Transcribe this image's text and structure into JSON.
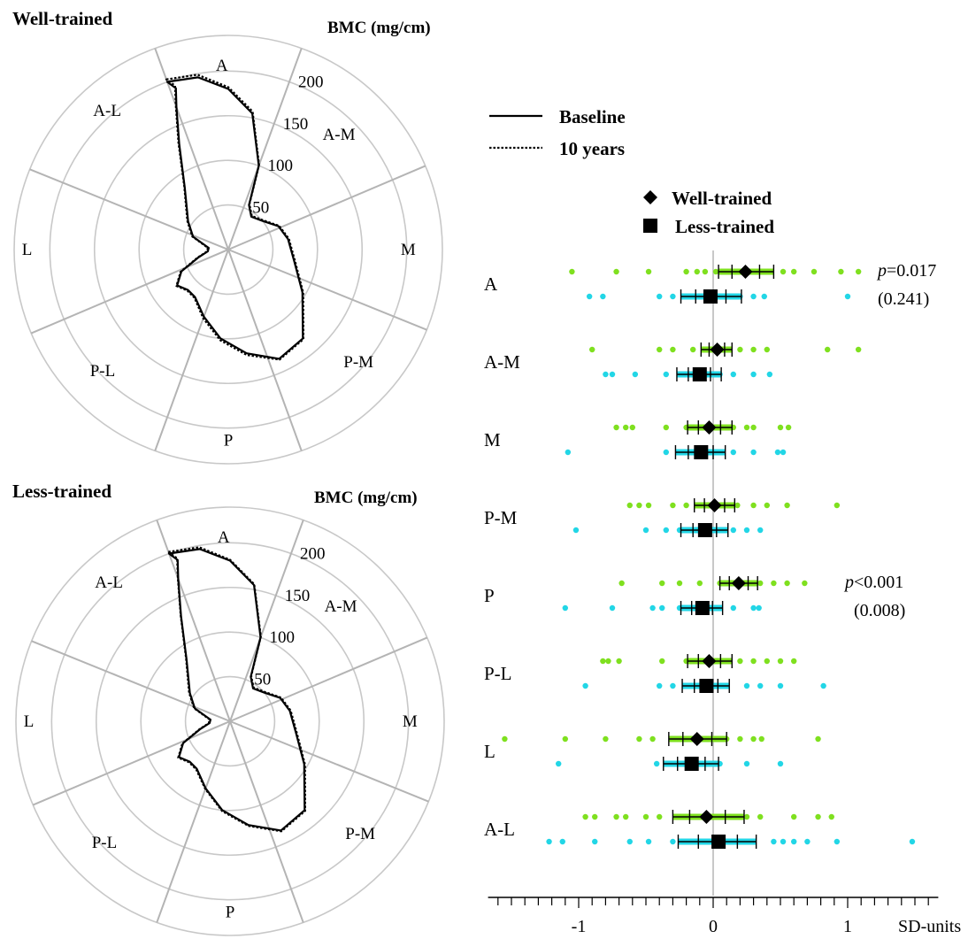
{
  "legend_lines": {
    "baseline": "Baseline",
    "ten_years": "10 years"
  },
  "legend_markers": {
    "well_trained": "Well-trained",
    "less_trained": "Less-trained"
  },
  "colors": {
    "well_trained_dots": "#7fe01f",
    "less_trained_dots": "#22d6e6",
    "grid": "#c8c8c8",
    "spokes": "#b4b4b4",
    "ink": "#000000"
  },
  "chart_data": [
    {
      "type": "polar-line",
      "title": "Well-trained",
      "axis_label": "BMC (mg/cm)",
      "radial_ticks": [
        "50",
        "100",
        "150",
        "200"
      ],
      "rmax": 200,
      "sectors": [
        "A",
        "A-M",
        "M",
        "P-M",
        "P",
        "P-L",
        "L",
        "A-L"
      ],
      "series": [
        {
          "name": "Baseline",
          "points": [
            [
              -20,
              200
            ],
            [
              -10,
              196
            ],
            [
              0,
              180
            ],
            [
              10,
              155
            ],
            [
              20,
              100
            ],
            [
              25,
              55
            ],
            [
              35,
              45
            ],
            [
              50,
              50
            ],
            [
              65,
              62
            ],
            [
              80,
              68
            ],
            [
              100,
              75
            ],
            [
              120,
              96
            ],
            [
              140,
              130
            ],
            [
              155,
              135
            ],
            [
              170,
              118
            ],
            [
              185,
              100
            ],
            [
              200,
              80
            ],
            [
              215,
              65
            ],
            [
              225,
              64
            ],
            [
              235,
              70
            ],
            [
              245,
              58
            ],
            [
              255,
              35
            ],
            [
              265,
              23
            ],
            [
              275,
              22
            ],
            [
              290,
              42
            ],
            [
              305,
              55
            ],
            [
              325,
              85
            ],
            [
              335,
              130
            ],
            [
              340,
              170
            ],
            [
              342,
              190
            ]
          ]
        },
        {
          "name": "10 years",
          "points": [
            [
              -20,
              203
            ],
            [
              -10,
              199
            ],
            [
              0,
              182
            ],
            [
              10,
              157
            ],
            [
              20,
              101
            ],
            [
              25,
              56
            ],
            [
              35,
              46
            ],
            [
              50,
              51
            ],
            [
              65,
              63
            ],
            [
              80,
              69
            ],
            [
              100,
              76
            ],
            [
              120,
              97
            ],
            [
              140,
              131
            ],
            [
              155,
              136
            ],
            [
              170,
              120
            ],
            [
              185,
              102
            ],
            [
              200,
              82
            ],
            [
              215,
              66
            ],
            [
              225,
              65
            ],
            [
              235,
              71
            ],
            [
              245,
              59
            ],
            [
              255,
              36
            ],
            [
              265,
              24
            ],
            [
              275,
              23
            ],
            [
              290,
              43
            ],
            [
              305,
              56
            ],
            [
              325,
              86
            ],
            [
              335,
              132
            ],
            [
              340,
              172
            ],
            [
              342,
              193
            ]
          ]
        }
      ]
    },
    {
      "type": "polar-line",
      "title": "Less-trained",
      "axis_label": "BMC (mg/cm)",
      "radial_ticks": [
        "50",
        "100",
        "150",
        "200"
      ],
      "rmax": 200,
      "sectors": [
        "A",
        "A-M",
        "M",
        "P-M",
        "P",
        "P-L",
        "L",
        "A-L"
      ],
      "series": [
        {
          "name": "Baseline",
          "points": [
            [
              -20,
              200
            ],
            [
              -10,
              196
            ],
            [
              0,
              180
            ],
            [
              10,
              155
            ],
            [
              20,
              100
            ],
            [
              25,
              55
            ],
            [
              35,
              45
            ],
            [
              50,
              50
            ],
            [
              65,
              62
            ],
            [
              80,
              68
            ],
            [
              100,
              75
            ],
            [
              120,
              96
            ],
            [
              140,
              130
            ],
            [
              155,
              135
            ],
            [
              170,
              118
            ],
            [
              185,
              100
            ],
            [
              200,
              80
            ],
            [
              215,
              65
            ],
            [
              225,
              64
            ],
            [
              235,
              70
            ],
            [
              245,
              58
            ],
            [
              255,
              35
            ],
            [
              265,
              23
            ],
            [
              275,
              22
            ],
            [
              290,
              42
            ],
            [
              305,
              55
            ],
            [
              325,
              85
            ],
            [
              335,
              130
            ],
            [
              340,
              170
            ],
            [
              342,
              190
            ]
          ]
        },
        {
          "name": "10 years",
          "points": [
            [
              -20,
              202
            ],
            [
              -10,
              198
            ],
            [
              0,
              181
            ],
            [
              10,
              156
            ],
            [
              20,
              101
            ],
            [
              25,
              56
            ],
            [
              35,
              46
            ],
            [
              50,
              51
            ],
            [
              65,
              63
            ],
            [
              80,
              69
            ],
            [
              100,
              76
            ],
            [
              120,
              97
            ],
            [
              140,
              131
            ],
            [
              155,
              136
            ],
            [
              170,
              119
            ],
            [
              185,
              101
            ],
            [
              200,
              81
            ],
            [
              215,
              66
            ],
            [
              225,
              65
            ],
            [
              235,
              71
            ],
            [
              245,
              59
            ],
            [
              255,
              36
            ],
            [
              265,
              24
            ],
            [
              275,
              23
            ],
            [
              290,
              43
            ],
            [
              305,
              56
            ],
            [
              325,
              86
            ],
            [
              335,
              131
            ],
            [
              340,
              171
            ],
            [
              342,
              192
            ]
          ]
        }
      ]
    },
    {
      "type": "scatter",
      "xlabel": "SD-units",
      "xlim": [
        -1.7,
        1.7
      ],
      "x_ticks": [
        "-1",
        "0",
        "1"
      ],
      "categories": [
        "A",
        "A-M",
        "M",
        "P-M",
        "P",
        "P-L",
        "L",
        "A-L"
      ],
      "annotations": [
        {
          "category": "A",
          "p_label": "p",
          "p_value": "=0.017",
          "paren": "(0.241)"
        },
        {
          "category": "P",
          "p_label": "p",
          "p_value": "<0.001",
          "paren": "(0.008)"
        }
      ],
      "series": [
        {
          "name": "Well-trained",
          "mean": [
            0.24,
            0.03,
            -0.03,
            0.01,
            0.19,
            -0.03,
            -0.12,
            -0.05
          ],
          "ci_low": [
            0.04,
            -0.09,
            -0.19,
            -0.14,
            0.05,
            -0.19,
            -0.33,
            -0.3
          ],
          "ci_high": [
            0.45,
            0.14,
            0.14,
            0.16,
            0.33,
            0.14,
            0.1,
            0.23
          ],
          "points": [
            [
              -1.05,
              -0.72,
              -0.48,
              -0.2,
              -0.12,
              -0.06,
              0.02,
              0.1,
              0.18,
              0.3,
              0.4,
              0.52,
              0.6,
              0.75,
              0.95,
              1.08
            ],
            [
              -0.9,
              -0.4,
              -0.3,
              -0.15,
              -0.05,
              0.02,
              0.1,
              0.2,
              0.3,
              0.4,
              0.85,
              1.08
            ],
            [
              -0.72,
              -0.65,
              -0.6,
              -0.35,
              -0.2,
              -0.05,
              0.05,
              0.15,
              0.25,
              0.3,
              0.5,
              0.56
            ],
            [
              -0.62,
              -0.55,
              -0.48,
              -0.3,
              -0.2,
              -0.1,
              0.0,
              0.08,
              0.18,
              0.3,
              0.4,
              0.55,
              0.92
            ],
            [
              -0.68,
              -0.38,
              -0.25,
              -0.1,
              0.05,
              0.15,
              0.25,
              0.35,
              0.45,
              0.55,
              0.68
            ],
            [
              -0.82,
              -0.78,
              -0.7,
              -0.38,
              -0.2,
              -0.05,
              0.05,
              0.2,
              0.3,
              0.4,
              0.5,
              0.6
            ],
            [
              -1.55,
              -1.1,
              -0.8,
              -0.55,
              -0.45,
              -0.3,
              -0.15,
              0.0,
              0.1,
              0.2,
              0.3,
              0.36,
              0.78
            ],
            [
              -0.95,
              -0.88,
              -0.72,
              -0.65,
              -0.5,
              -0.4,
              -0.2,
              0.0,
              0.15,
              0.25,
              0.35,
              0.6,
              0.78,
              0.88
            ]
          ]
        },
        {
          "name": "Less-trained",
          "mean": [
            -0.02,
            -0.1,
            -0.09,
            -0.06,
            -0.08,
            -0.05,
            -0.16,
            0.04
          ],
          "ci_low": [
            -0.24,
            -0.27,
            -0.28,
            -0.24,
            -0.24,
            -0.23,
            -0.37,
            -0.26
          ],
          "ci_high": [
            0.21,
            0.06,
            0.09,
            0.11,
            0.07,
            0.12,
            0.04,
            0.32
          ],
          "points": [
            [
              -0.92,
              -0.82,
              -0.4,
              -0.3,
              -0.2,
              -0.1,
              0.0,
              0.1,
              0.2,
              0.3,
              0.38,
              1.0
            ],
            [
              -0.8,
              -0.75,
              -0.58,
              -0.35,
              -0.25,
              -0.15,
              -0.05,
              0.05,
              0.15,
              0.3,
              0.42
            ],
            [
              -1.08,
              -0.35,
              -0.25,
              -0.15,
              -0.05,
              0.05,
              0.15,
              0.3,
              0.48,
              0.52
            ],
            [
              -1.02,
              -0.5,
              -0.35,
              -0.25,
              -0.15,
              -0.05,
              0.05,
              0.15,
              0.25,
              0.35
            ],
            [
              -1.1,
              -0.75,
              -0.45,
              -0.38,
              -0.25,
              -0.15,
              -0.05,
              0.05,
              0.15,
              0.3,
              0.34
            ],
            [
              -0.95,
              -0.4,
              -0.3,
              -0.2,
              -0.1,
              0.0,
              0.1,
              0.25,
              0.35,
              0.5,
              0.82
            ],
            [
              -1.15,
              -0.42,
              -0.35,
              -0.25,
              -0.15,
              -0.05,
              0.05,
              0.25,
              0.5
            ],
            [
              -1.22,
              -1.12,
              -0.88,
              -0.62,
              -0.48,
              -0.3,
              -0.2,
              -0.1,
              0.0,
              0.1,
              0.2,
              0.3,
              0.45,
              0.52,
              0.6,
              0.7,
              0.92,
              1.48
            ]
          ]
        }
      ]
    }
  ]
}
